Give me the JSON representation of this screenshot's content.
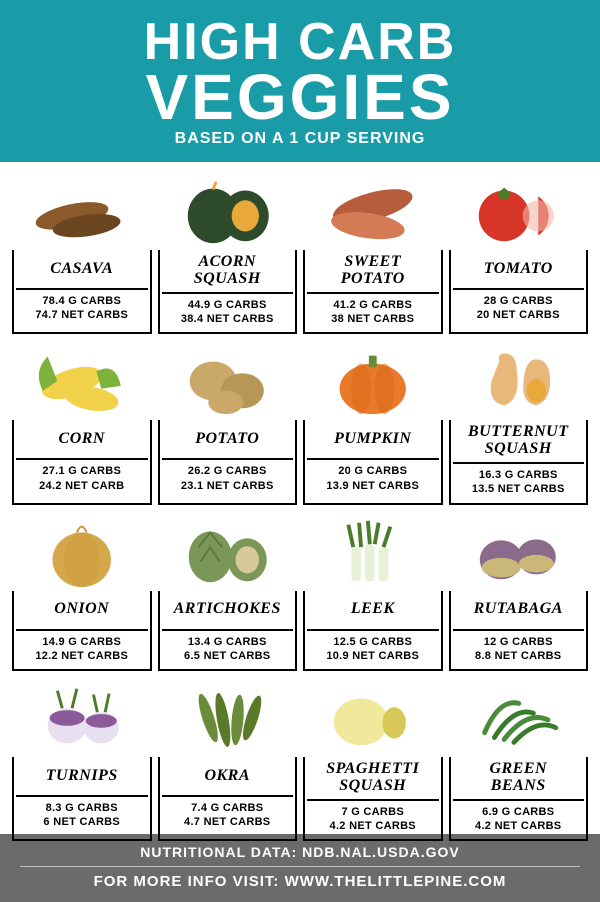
{
  "header": {
    "title_line1": "HIGH CARB",
    "title_line2": "VEGGIES",
    "subtitle": "BASED ON A 1 CUP SERVING",
    "bg_color": "#1a9ba8",
    "text_color": "#ffffff"
  },
  "grid": {
    "columns": 4,
    "rows": 4,
    "cell_border_color": "#000000",
    "name_font": "italic bold serif",
    "stats_font": "bold sans-serif"
  },
  "veggies": [
    {
      "name": "CASAVA",
      "carbs": "78.4 G CARBS",
      "net": "74.7 NET CARBS",
      "icon": "casava"
    },
    {
      "name": "ACORN\nSQUASH",
      "carbs": "44.9 G CARBS",
      "net": "38.4 NET CARBS",
      "icon": "acorn-squash"
    },
    {
      "name": "SWEET\nPOTATO",
      "carbs": "41.2 G CARBS",
      "net": "38 NET CARBS",
      "icon": "sweet-potato"
    },
    {
      "name": "TOMATO",
      "carbs": "28 G CARBS",
      "net": "20 NET CARBS",
      "icon": "tomato"
    },
    {
      "name": "CORN",
      "carbs": "27.1 G CARBS",
      "net": "24.2 NET CARB",
      "icon": "corn"
    },
    {
      "name": "POTATO",
      "carbs": "26.2 G CARBS",
      "net": "23.1 NET CARBS",
      "icon": "potato"
    },
    {
      "name": "PUMPKIN",
      "carbs": "20 G CARBS",
      "net": "13.9 NET CARBS",
      "icon": "pumpkin"
    },
    {
      "name": "BUTTERNUT\nSQUASH",
      "carbs": "16.3 G CARBS",
      "net": "13.5 NET CARBS",
      "icon": "butternut"
    },
    {
      "name": "ONION",
      "carbs": "14.9 G CARBS",
      "net": "12.2 NET CARBS",
      "icon": "onion"
    },
    {
      "name": "ARTICHOKES",
      "carbs": "13.4 G CARBS",
      "net": "6.5 NET CARBS",
      "icon": "artichoke"
    },
    {
      "name": "LEEK",
      "carbs": "12.5 G CARBS",
      "net": "10.9 NET CARBS",
      "icon": "leek"
    },
    {
      "name": "RUTABAGA",
      "carbs": "12 G CARBS",
      "net": "8.8 NET CARBS",
      "icon": "rutabaga"
    },
    {
      "name": "TURNIPS",
      "carbs": "8.3 G CARBS",
      "net": "6 NET CARBS",
      "icon": "turnip"
    },
    {
      "name": "OKRA",
      "carbs": "7.4 G CARBS",
      "net": "4.7 NET CARBS",
      "icon": "okra"
    },
    {
      "name": "SPAGHETTI\nSQUASH",
      "carbs": "7 G CARBS",
      "net": "4.2 NET CARBS",
      "icon": "spaghetti-squash"
    },
    {
      "name": "GREEN\nBEANS",
      "carbs": "6.9 G CARBS",
      "net": "4.2 NET CARBS",
      "icon": "green-beans"
    }
  ],
  "footer": {
    "line1": "NUTRITIONAL DATA:  NDB.NAL.USDA.GOV",
    "line2": "FOR MORE INFO VISIT: WWW.THELITTLEPINE.COM",
    "bg_color": "#6b6b6b",
    "text_color": "#ffffff",
    "divider_color": "#bdbdbd"
  },
  "icon_colors": {
    "casava": {
      "primary": "#8b5a2b",
      "secondary": "#6b4420"
    },
    "acorn-squash": {
      "primary": "#2d4a2b",
      "secondary": "#e8a83a"
    },
    "sweet-potato": {
      "primary": "#b85c3e",
      "secondary": "#d47a54"
    },
    "tomato": {
      "primary": "#d73527",
      "secondary": "#4a7c2a"
    },
    "corn": {
      "primary": "#f2d24a",
      "secondary": "#7fb23a"
    },
    "potato": {
      "primary": "#c9a86a",
      "secondary": "#b89658"
    },
    "pumpkin": {
      "primary": "#e87a2a",
      "secondary": "#d66818"
    },
    "butternut": {
      "primary": "#e8b87a",
      "secondary": "#e8a83a"
    },
    "onion": {
      "primary": "#d4a84a",
      "secondary": "#c89638"
    },
    "artichoke": {
      "primary": "#7a9658",
      "secondary": "#5a7a3a"
    },
    "leek": {
      "primary": "#e8f0d8",
      "secondary": "#4a7c2a"
    },
    "rutabaga": {
      "primary": "#8b6a8b",
      "secondary": "#c9b87a"
    },
    "turnip": {
      "primary": "#e8e0f0",
      "secondary": "#8b5a9b"
    },
    "okra": {
      "primary": "#6a8b3a",
      "secondary": "#5a7a2a"
    },
    "spaghetti-squash": {
      "primary": "#f0e89a",
      "secondary": "#d8c858"
    },
    "green-beans": {
      "primary": "#4a8b3a",
      "secondary": "#3a7a2a"
    }
  }
}
